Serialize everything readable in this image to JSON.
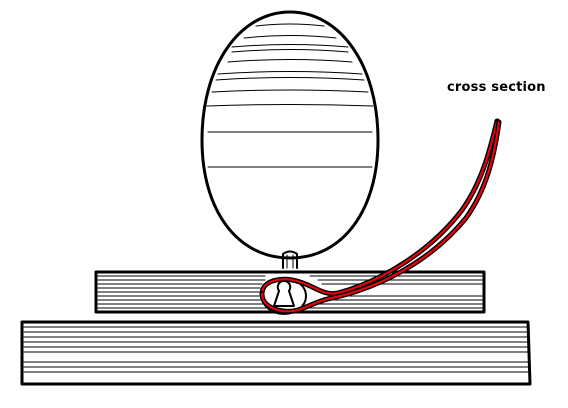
{
  "diagram": {
    "annotation_label": "cross section",
    "colors": {
      "line": "#000000",
      "highlight": "#e8000d",
      "background": "#ffffff"
    }
  }
}
